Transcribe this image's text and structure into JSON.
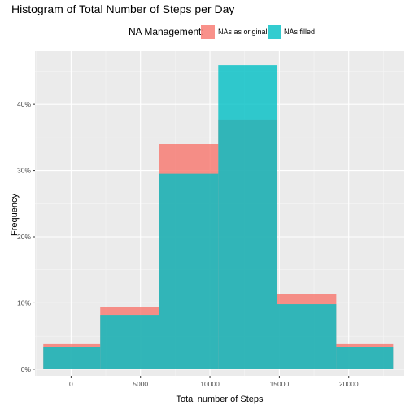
{
  "chart_data": {
    "type": "histogram",
    "title": "Histogram of Total Number of Steps per Day",
    "xlabel": "Total number of Steps",
    "ylabel": "Frequency",
    "xlim": [
      -2600,
      24000
    ],
    "ylim": [
      -0.01,
      0.48
    ],
    "x_ticks": [
      0,
      5000,
      10000,
      15000,
      20000
    ],
    "x_tick_labels": [
      "0",
      "5000",
      "10000",
      "15000",
      "20000"
    ],
    "y_ticks": [
      0,
      0.1,
      0.2,
      0.3,
      0.4
    ],
    "y_tick_labels": [
      "0%",
      "10%",
      "20%",
      "30%",
      "40%"
    ],
    "bins": [
      [
        -2000,
        2100
      ],
      [
        2100,
        6350
      ],
      [
        6350,
        10600
      ],
      [
        10600,
        14850
      ],
      [
        14850,
        19100
      ],
      [
        19100,
        23200
      ]
    ],
    "grid": true,
    "legend_position": "top",
    "legend_title": "NA Management:",
    "series": [
      {
        "name": "NAs as original",
        "color": "#F8766D",
        "values": [
          0.038,
          0.094,
          0.34,
          0.377,
          0.113,
          0.038
        ]
      },
      {
        "name": "NAs filled",
        "color": "#00BFC4",
        "values": [
          0.033,
          0.082,
          0.295,
          0.459,
          0.098,
          0.033
        ]
      }
    ]
  }
}
